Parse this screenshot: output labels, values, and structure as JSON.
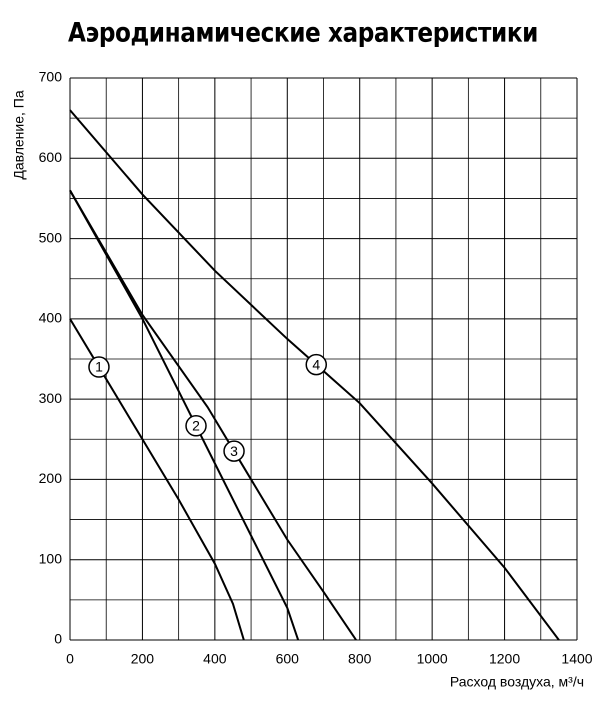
{
  "chart_data": {
    "type": "line",
    "title": "Аэродинамические характеристики",
    "xlabel": "Расход воздуха, м³/ч",
    "ylabel": "Давление, Па",
    "xlim": [
      0,
      1400
    ],
    "ylim": [
      0,
      700
    ],
    "xticks": [
      0,
      200,
      400,
      600,
      800,
      1000,
      1200,
      1400
    ],
    "yticks": [
      0,
      100,
      200,
      300,
      400,
      500,
      600,
      700
    ],
    "grid": true,
    "series": [
      {
        "name": "1",
        "color": "#000000",
        "x": [
          0,
          100,
          200,
          300,
          350,
          400,
          450,
          480
        ],
        "values": [
          400,
          325,
          250,
          175,
          135,
          95,
          45,
          0
        ]
      },
      {
        "name": "2",
        "color": "#000000",
        "x": [
          0,
          200,
          300,
          400,
          500,
          600,
          630
        ],
        "values": [
          560,
          400,
          310,
          220,
          130,
          40,
          0
        ]
      },
      {
        "name": "3",
        "color": "#000000",
        "x": [
          0,
          200,
          380,
          500,
          600,
          700,
          790
        ],
        "values": [
          560,
          405,
          290,
          200,
          125,
          60,
          0
        ]
      },
      {
        "name": "4",
        "color": "#000000",
        "x": [
          0,
          200,
          400,
          600,
          800,
          900,
          1000,
          1200,
          1350
        ],
        "values": [
          660,
          555,
          460,
          375,
          295,
          245,
          195,
          90,
          0
        ]
      }
    ]
  }
}
